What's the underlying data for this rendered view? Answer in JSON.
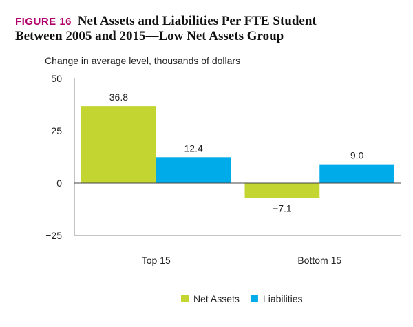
{
  "figure_label": "FIGURE 16",
  "chart_data": {
    "type": "bar",
    "title": "Net Assets and Liabilities Per FTE Student",
    "subtitle": "Between 2005 and 2015—Low Net Assets Group",
    "ylabel": "Change in average level, thousands of dollars",
    "xlabel": "",
    "categories": [
      "Top 15",
      "Bottom 15"
    ],
    "series": [
      {
        "name": "Net Assets",
        "values": [
          36.8,
          -7.1
        ],
        "labels": [
          "36.8",
          "−7.1"
        ],
        "color": "#c2d531"
      },
      {
        "name": "Liabilities",
        "values": [
          12.4,
          9.0
        ],
        "labels": [
          "12.4",
          "9.0"
        ],
        "color": "#00abe9"
      }
    ],
    "ylim": [
      -25,
      50
    ],
    "yticks": [
      50,
      25,
      0,
      -25
    ],
    "ytick_labels": [
      "50",
      "25",
      "0",
      "−25"
    ],
    "grid": false,
    "legend": "bottom"
  }
}
